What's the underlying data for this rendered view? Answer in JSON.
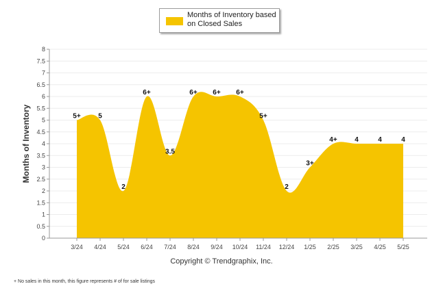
{
  "chart_data": {
    "type": "area",
    "categories": [
      "3/24",
      "4/24",
      "5/24",
      "6/24",
      "7/24",
      "8/24",
      "9/24",
      "10/24",
      "11/24",
      "12/24",
      "1/25",
      "2/25",
      "3/25",
      "4/25",
      "5/25"
    ],
    "series": [
      {
        "name": "Months of Inventory based on Closed Sales",
        "values": [
          5,
          5,
          2,
          6,
          3.5,
          6,
          6,
          6,
          5,
          2,
          3,
          4,
          4,
          4,
          4
        ],
        "data_labels": [
          "5+",
          "5",
          "2",
          "6+",
          "3.5",
          "6+",
          "6+",
          "6+",
          "5+",
          "2",
          "3+",
          "4+",
          "4",
          "4",
          "4"
        ],
        "color": "#f5c400"
      }
    ],
    "ylabel": "Months of Inventory",
    "xlabel": "",
    "ylim": [
      0,
      8
    ],
    "yticks": [
      "0",
      "0.5",
      "1",
      "1.5",
      "2",
      "2.5",
      "3",
      "3.5",
      "4",
      "4.5",
      "5",
      "5.5",
      "6",
      "6.5",
      "7",
      "7.5",
      "8"
    ],
    "grid": true,
    "legend": "top-center"
  },
  "copyright": "Copyright © Trendgraphix, Inc.",
  "footnote": "+ No sales in this month, this figure represents # of for sale listings"
}
